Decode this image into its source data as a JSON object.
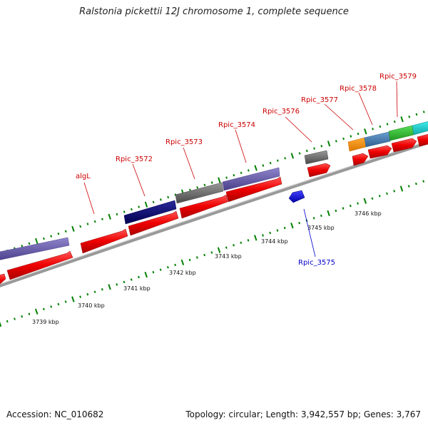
{
  "title": "Ralstonia pickettii 12J chromosome 1, complete sequence",
  "footer": {
    "accession": "Accession: NC_010682",
    "summary": "Topology: circular; Length: 3,942,557 bp; Genes: 3,767"
  },
  "colors": {
    "backbone": "#999999",
    "cds": "#ff0000",
    "reverse_cds": "#0000ff",
    "tick": "#008000",
    "label_forward": "#cc0000",
    "label_reverse": "#0000cc"
  },
  "gene_labels": [
    {
      "text": "algL",
      "strand": "forward"
    },
    {
      "text": "Rpic_3572",
      "strand": "forward"
    },
    {
      "text": "Rpic_3573",
      "strand": "forward"
    },
    {
      "text": "Rpic_3574",
      "strand": "forward"
    },
    {
      "text": "Rpic_3576",
      "strand": "forward"
    },
    {
      "text": "Rpic_3577",
      "strand": "forward"
    },
    {
      "text": "Rpic_3578",
      "strand": "forward"
    },
    {
      "text": "Rpic_3579",
      "strand": "forward"
    },
    {
      "text": "Rpic_3575",
      "strand": "reverse"
    }
  ],
  "scale_labels": [
    "3739 kbp",
    "3740 kbp",
    "3741 kbp",
    "3742 kbp",
    "3743 kbp",
    "3744 kbp",
    "3745 kbp",
    "3746 kbp"
  ]
}
